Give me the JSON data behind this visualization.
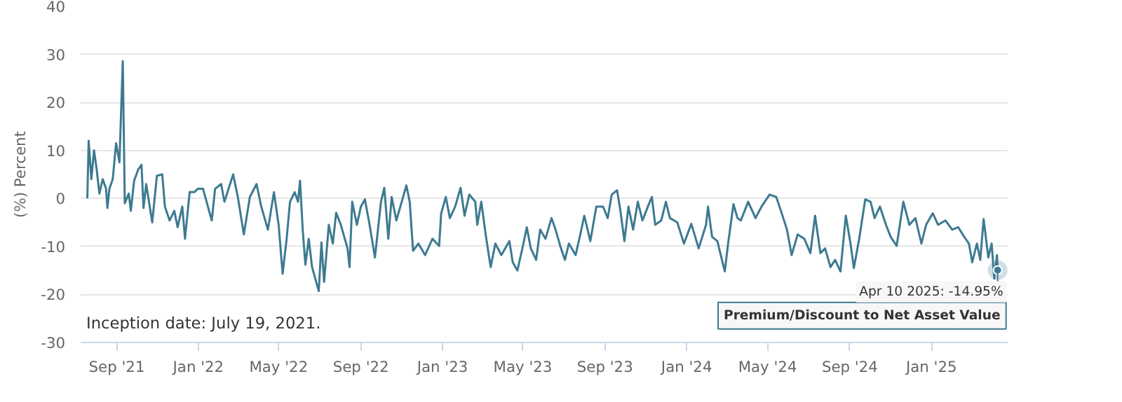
{
  "chart_data": {
    "type": "line",
    "ylabel": "(%) Percent",
    "x": [
      "2021-07-19",
      "2021-07-21",
      "2021-07-25",
      "2021-07-29",
      "2021-08-02",
      "2021-08-06",
      "2021-08-11",
      "2021-08-16",
      "2021-08-18",
      "2021-08-21",
      "2021-08-26",
      "2021-08-31",
      "2021-09-05",
      "2021-09-10",
      "2021-09-13",
      "2021-09-19",
      "2021-09-22",
      "2021-09-27",
      "2021-10-03",
      "2021-10-08",
      "2021-10-11",
      "2021-10-15",
      "2021-10-24",
      "2021-10-31",
      "2021-11-08",
      "2021-11-12",
      "2021-11-19",
      "2021-11-26",
      "2021-12-01",
      "2021-12-08",
      "2021-12-12",
      "2021-12-19",
      "2021-12-26",
      "2021-12-31",
      "2022-01-08",
      "2022-01-21",
      "2022-01-26",
      "2022-02-04",
      "2022-02-09",
      "2022-02-22",
      "2022-03-01",
      "2022-03-10",
      "2022-03-19",
      "2022-03-29",
      "2022-04-05",
      "2022-04-15",
      "2022-04-24",
      "2022-05-01",
      "2022-05-07",
      "2022-05-13",
      "2022-05-18",
      "2022-05-25",
      "2022-05-30",
      "2022-06-02",
      "2022-06-06",
      "2022-06-10",
      "2022-06-15",
      "2022-06-20",
      "2022-06-30",
      "2022-07-04",
      "2022-07-08",
      "2022-07-15",
      "2022-07-21",
      "2022-07-26",
      "2022-08-02",
      "2022-08-12",
      "2022-08-15",
      "2022-08-19",
      "2022-08-26",
      "2022-09-01",
      "2022-09-07",
      "2022-09-14",
      "2022-09-22",
      "2022-10-01",
      "2022-10-06",
      "2022-10-12",
      "2022-10-17",
      "2022-10-24",
      "2022-11-01",
      "2022-11-08",
      "2022-11-13",
      "2022-11-18",
      "2022-11-26",
      "2022-12-06",
      "2022-12-17",
      "2022-12-27",
      "2022-12-30",
      "2023-01-06",
      "2023-01-12",
      "2023-01-20",
      "2023-01-28",
      "2023-02-03",
      "2023-02-10",
      "2023-02-19",
      "2023-02-22",
      "2023-02-28",
      "2023-03-07",
      "2023-03-14",
      "2023-03-21",
      "2023-03-30",
      "2023-04-11",
      "2023-04-16",
      "2023-04-23",
      "2023-05-02",
      "2023-05-07",
      "2023-05-13",
      "2023-05-21",
      "2023-05-27",
      "2023-06-04",
      "2023-06-13",
      "2023-06-19",
      "2023-06-26",
      "2023-07-03",
      "2023-07-09",
      "2023-07-19",
      "2023-07-26",
      "2023-08-01",
      "2023-08-10",
      "2023-08-19",
      "2023-08-29",
      "2023-09-05",
      "2023-09-11",
      "2023-09-19",
      "2023-09-24",
      "2023-09-30",
      "2023-10-06",
      "2023-10-13",
      "2023-10-20",
      "2023-10-27",
      "2023-11-04",
      "2023-11-10",
      "2023-11-15",
      "2023-11-24",
      "2023-12-01",
      "2023-12-07",
      "2023-12-18",
      "2023-12-28",
      "2024-01-08",
      "2024-01-19",
      "2024-01-30",
      "2024-02-02",
      "2024-02-08",
      "2024-02-16",
      "2024-02-21",
      "2024-02-27",
      "2024-03-03",
      "2024-03-11",
      "2024-03-17",
      "2024-03-22",
      "2024-04-02",
      "2024-04-13",
      "2024-04-22",
      "2024-05-04",
      "2024-05-14",
      "2024-05-21",
      "2024-05-30",
      "2024-06-06",
      "2024-06-15",
      "2024-06-25",
      "2024-07-04",
      "2024-07-11",
      "2024-07-19",
      "2024-07-26",
      "2024-08-03",
      "2024-08-10",
      "2024-08-18",
      "2024-08-26",
      "2024-09-02",
      "2024-09-07",
      "2024-09-15",
      "2024-09-24",
      "2024-10-02",
      "2024-10-08",
      "2024-10-16",
      "2024-10-25",
      "2024-11-01",
      "2024-11-10",
      "2024-11-20",
      "2024-11-29",
      "2024-12-08",
      "2024-12-17",
      "2024-12-24",
      "2025-01-03",
      "2025-01-11",
      "2025-01-22",
      "2025-02-01",
      "2025-02-10",
      "2025-02-19",
      "2025-02-26",
      "2025-03-03",
      "2025-03-10",
      "2025-03-15",
      "2025-03-20",
      "2025-03-27",
      "2025-04-01",
      "2025-04-05",
      "2025-04-09",
      "2025-04-10"
    ],
    "series": [
      {
        "name": "Premium/Discount to Net Asset Value",
        "color": "#3d7a91",
        "values": [
          0,
          12,
          4,
          10,
          6,
          1,
          4,
          2,
          -2,
          2,
          4,
          11.5,
          7.5,
          28.6,
          -1,
          1,
          -2.6,
          3.7,
          6,
          7,
          -2,
          3,
          -5,
          4.7,
          5,
          -1.7,
          -4.6,
          -2.6,
          -6,
          -1.7,
          -8.4,
          1.3,
          1.3,
          2,
          2,
          -4.6,
          2,
          3,
          -0.7,
          5,
          0.3,
          -7.5,
          0.3,
          3,
          -1.7,
          -6.5,
          1.3,
          -5.5,
          -15.7,
          -8.4,
          -0.7,
          1.3,
          -0.7,
          3.7,
          -6.5,
          -13.8,
          -8.4,
          -14.3,
          -19.3,
          -9.2,
          -17.4,
          -5.5,
          -9.4,
          -3,
          -5.5,
          -10.4,
          -14.3,
          -0.7,
          -5.5,
          -1.7,
          -0.2,
          -5.5,
          -12.3,
          -0.7,
          2.2,
          -8.4,
          0.3,
          -4.6,
          -0.7,
          2.7,
          -0.7,
          -10.9,
          -9.4,
          -11.8,
          -8.4,
          -9.9,
          -3.1,
          0.3,
          -4.1,
          -1.7,
          2.2,
          -3.6,
          0.8,
          -0.7,
          -5.5,
          -0.7,
          -8,
          -14.3,
          -9.4,
          -11.8,
          -8.9,
          -13.3,
          -15,
          -9.4,
          -6,
          -10.4,
          -12.8,
          -6.5,
          -8.4,
          -4.1,
          -6.5,
          -9.9,
          -12.8,
          -9.4,
          -11.8,
          -7.5,
          -3.6,
          -8.9,
          -1.7,
          -1.7,
          -4.1,
          0.8,
          1.7,
          -2.6,
          -8.9,
          -1.7,
          -6.5,
          -0.7,
          -4.6,
          -1.7,
          0.3,
          -5.5,
          -4.6,
          -0.7,
          -4.1,
          -5,
          -9.4,
          -5.3,
          -10.4,
          -5.5,
          -1.7,
          -8,
          -8.9,
          -11.8,
          -15.2,
          -9.4,
          -1.2,
          -4.1,
          -4.6,
          -0.7,
          -4.1,
          -1.7,
          0.8,
          0.3,
          -2.6,
          -6.5,
          -11.8,
          -7.5,
          -8.4,
          -11.4,
          -3.6,
          -11.4,
          -10.4,
          -14.3,
          -12.8,
          -15.2,
          -3.6,
          -9.4,
          -14.5,
          -8.4,
          -0.2,
          -0.7,
          -4.1,
          -1.7,
          -5.5,
          -8,
          -9.9,
          -0.7,
          -5.5,
          -4.1,
          -9.4,
          -5.5,
          -3.1,
          -5.5,
          -4.6,
          -6.5,
          -6,
          -8,
          -9.4,
          -13.3,
          -9.4,
          -12.8,
          -4.3,
          -12.3,
          -9.4,
          -16.7,
          -11.8,
          -14.95
        ]
      }
    ],
    "xlim": [
      "2021-07-09",
      "2025-04-25"
    ],
    "xticks": [
      {
        "value": "2021-09-01",
        "label": "Sep '21"
      },
      {
        "value": "2022-01-01",
        "label": "Jan '22"
      },
      {
        "value": "2022-05-01",
        "label": "May '22"
      },
      {
        "value": "2022-09-01",
        "label": "Sep '22"
      },
      {
        "value": "2023-01-01",
        "label": "Jan '23"
      },
      {
        "value": "2023-05-01",
        "label": "May '23"
      },
      {
        "value": "2023-09-01",
        "label": "Sep '23"
      },
      {
        "value": "2024-01-01",
        "label": "Jan '24"
      },
      {
        "value": "2024-05-01",
        "label": "May '24"
      },
      {
        "value": "2024-09-01",
        "label": "Sep '24"
      },
      {
        "value": "2025-01-01",
        "label": "Jan '25"
      }
    ],
    "ylim": [
      -30,
      40
    ],
    "yticks": [
      -30,
      -20,
      -10,
      0,
      10,
      20,
      30,
      40
    ],
    "grid": "y",
    "annotations": [
      {
        "text": "Apr 10 2025: -14.95%",
        "x": "2025-04-10",
        "y": -14.95
      },
      "Inception date: July 19, 2021."
    ]
  }
}
